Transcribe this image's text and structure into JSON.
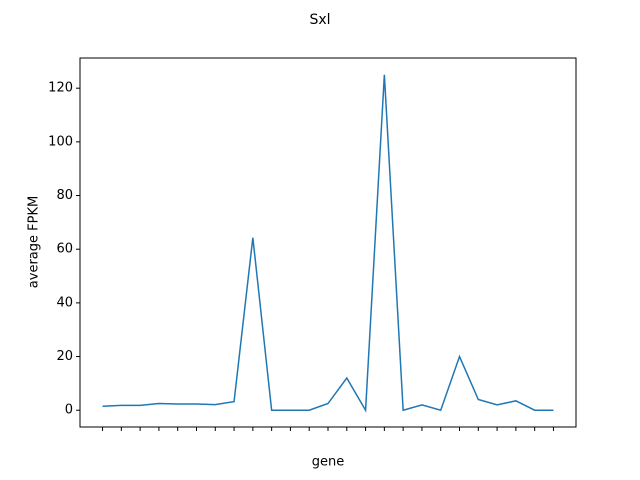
{
  "chart_data": {
    "type": "line",
    "title": "Sxl",
    "x_label": "gene",
    "y_label": "average FPKM",
    "categories": [
      null,
      null,
      null,
      null,
      null,
      null,
      null,
      null,
      null,
      null,
      null,
      null,
      null,
      null,
      null,
      null,
      null,
      null,
      null,
      null,
      null,
      null,
      null,
      null,
      null
    ],
    "series": [
      {
        "name": null,
        "color": "#1f77b4",
        "values": [
          1.5,
          1.8,
          1.8,
          2.5,
          2.3,
          2.3,
          2.1,
          3.2,
          64.3,
          0,
          0,
          0,
          2.5,
          12,
          0,
          125,
          0,
          2,
          0,
          20,
          4,
          2,
          3.5,
          0,
          0
        ]
      }
    ],
    "ylim": [
      -6.25,
      131.25
    ],
    "yticks": [
      0,
      20,
      40,
      60,
      80,
      100,
      120
    ],
    "grid": false
  }
}
